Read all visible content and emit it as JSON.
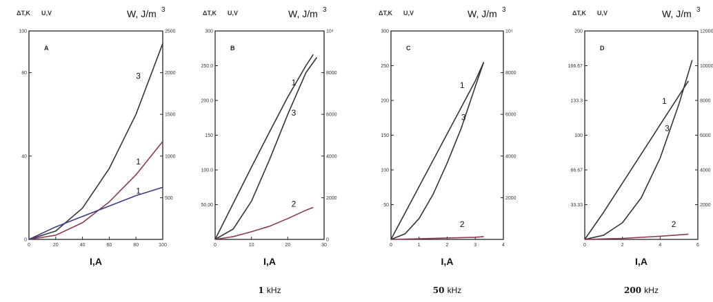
{
  "chart_data": [
    {
      "type": "line",
      "panel_label": "A",
      "header_left": "ΔT,K",
      "header_mid": "U,V",
      "header_right": "W, J/m",
      "header_right_exp": "3",
      "xlabel": "I,A",
      "frequency_value": "",
      "frequency_unit": "",
      "xlim": [
        0,
        100
      ],
      "ylim_left": [
        0,
        100
      ],
      "ylim_right": [
        0,
        2500
      ],
      "xticks": [
        0,
        20,
        40,
        60,
        80,
        100
      ],
      "yticks_left": [
        0,
        40,
        80,
        100
      ],
      "yticks_right": [
        500,
        1000,
        1500,
        2000,
        2500
      ],
      "series": [
        {
          "label": "3",
          "color": "#333333",
          "x": [
            0,
            20,
            40,
            60,
            80,
            100
          ],
          "y": [
            0,
            4,
            15,
            34,
            60,
            94
          ]
        },
        {
          "label": "1",
          "color": "#8a3a4a",
          "x": [
            0,
            20,
            40,
            60,
            80,
            100
          ],
          "y": [
            0,
            2,
            8,
            18,
            31,
            47
          ]
        },
        {
          "label": "1",
          "color": "#3a3a8a",
          "x": [
            0,
            20,
            40,
            60,
            80,
            100
          ],
          "y": [
            0,
            6,
            11,
            16,
            21,
            25
          ]
        }
      ],
      "series_label_positions": [
        [
          80,
          77
        ],
        [
          80,
          36
        ],
        [
          80,
          22
        ]
      ]
    },
    {
      "type": "line",
      "panel_label": "B",
      "header_left": "ΔT,K",
      "header_mid": "U,V",
      "header_right": "W, J/m",
      "header_right_exp": "3",
      "xlabel": "I,A",
      "frequency_value": "1",
      "frequency_unit": "kHz",
      "xlim": [
        0,
        30
      ],
      "ylim_left": [
        0,
        300
      ],
      "ylim_right": [
        0,
        10000
      ],
      "xticks": [
        0,
        10,
        20,
        30
      ],
      "xtick_labels": [
        "0",
        "10",
        "20",
        "30"
      ],
      "yticks_left": [
        50,
        100,
        150,
        200,
        250,
        300
      ],
      "yticks_left_labels": [
        "50.00",
        "100.0",
        "150",
        "200.0",
        "250.0",
        "300"
      ],
      "yticks_right": [
        0,
        2000,
        4000,
        6000,
        8000,
        10000
      ],
      "yticks_right_labels": [
        "0",
        "2000",
        "4000",
        "6000",
        "8000",
        "10⁴"
      ],
      "series": [
        {
          "label": "1",
          "color": "#333333",
          "x": [
            0,
            5,
            10,
            15,
            20,
            25,
            27
          ],
          "y": [
            0,
            52,
            104,
            155,
            205,
            250,
            266
          ]
        },
        {
          "label": "3",
          "color": "#333333",
          "x": [
            0,
            5,
            10,
            15,
            20,
            25,
            28
          ],
          "y": [
            0,
            15,
            55,
            115,
            180,
            240,
            262
          ]
        },
        {
          "label": "2",
          "color": "#8a3a4a",
          "x": [
            0,
            5,
            10,
            15,
            20,
            25,
            27
          ],
          "y": [
            0,
            4,
            11,
            19,
            30,
            42,
            46
          ]
        }
      ],
      "series_label_positions": [
        [
          21,
          222
        ],
        [
          21,
          178
        ],
        [
          21,
          47
        ]
      ]
    },
    {
      "type": "line",
      "panel_label": "C",
      "header_left": "ΔT,K",
      "header_mid": "U,V",
      "header_right": "W, J/m",
      "header_right_exp": "3",
      "xlabel": "I,A",
      "frequency_value": "50",
      "frequency_unit": "kHz",
      "xlim": [
        0,
        4
      ],
      "ylim_left": [
        0,
        300
      ],
      "ylim_right": [
        0,
        10000
      ],
      "xticks": [
        0,
        1,
        2,
        3,
        4
      ],
      "yticks_left": [
        50,
        100,
        150,
        200,
        250,
        300
      ],
      "yticks_right": [
        2000,
        4000,
        6000,
        8000,
        10000
      ],
      "yticks_right_labels": [
        "2000",
        "4000",
        "6000",
        "8000",
        "10⁴"
      ],
      "series": [
        {
          "label": "1",
          "color": "#333333",
          "x": [
            0,
            0.5,
            1,
            1.5,
            2,
            2.5,
            3,
            3.3
          ],
          "y": [
            0,
            38,
            76,
            114,
            152,
            190,
            228,
            255
          ]
        },
        {
          "label": "3",
          "color": "#333333",
          "x": [
            0,
            0.5,
            1,
            1.5,
            2,
            2.5,
            3,
            3.3
          ],
          "y": [
            0,
            8,
            30,
            65,
            110,
            160,
            220,
            255
          ]
        },
        {
          "label": "2",
          "color": "#8a3a4a",
          "x": [
            0,
            1,
            2,
            3,
            3.3
          ],
          "y": [
            0,
            1,
            2,
            3,
            4
          ]
        }
      ],
      "series_label_positions": [
        [
          2.45,
          218
        ],
        [
          2.5,
          172
        ],
        [
          2.45,
          18
        ]
      ]
    },
    {
      "type": "line",
      "panel_label": "D",
      "header_left": "ΔT,K",
      "header_mid": "U,V",
      "header_right": "W, J/m",
      "header_right_exp": "3",
      "xlabel": "I,A",
      "frequency_value": "200",
      "frequency_unit": "kHz",
      "xlim": [
        0,
        6
      ],
      "ylim_left": [
        0,
        200
      ],
      "ylim_right": [
        0,
        12000
      ],
      "xticks": [
        0,
        2,
        4,
        6
      ],
      "yticks_left": [
        33.3,
        66.7,
        100,
        133.3,
        166.7,
        200
      ],
      "yticks_left_labels": [
        "33.33",
        "66.67",
        "100",
        "133.3",
        "166.67",
        "200"
      ],
      "yticks_right": [
        2000,
        4000,
        6000,
        8000,
        10000,
        12000
      ],
      "yticks_right_labels": [
        "2000",
        "4000",
        "6000",
        "8000",
        "10000",
        "12000"
      ],
      "series": [
        {
          "label": "1",
          "color": "#333333",
          "x": [
            0,
            1,
            2,
            3,
            4,
            5,
            5.5
          ],
          "y": [
            0,
            26,
            54,
            82,
            110,
            138,
            152
          ]
        },
        {
          "label": "3",
          "color": "#333333",
          "x": [
            0,
            1,
            2,
            3,
            4,
            5,
            5.7
          ],
          "y": [
            0,
            4,
            16,
            40,
            78,
            130,
            172
          ]
        },
        {
          "label": "2",
          "color": "#8a3a4a",
          "x": [
            0,
            2,
            4,
            5.5
          ],
          "y": [
            0,
            1,
            3,
            5
          ]
        }
      ],
      "series_label_positions": [
        [
          4.1,
          130
        ],
        [
          4.25,
          104
        ],
        [
          4.6,
          12
        ]
      ]
    }
  ]
}
